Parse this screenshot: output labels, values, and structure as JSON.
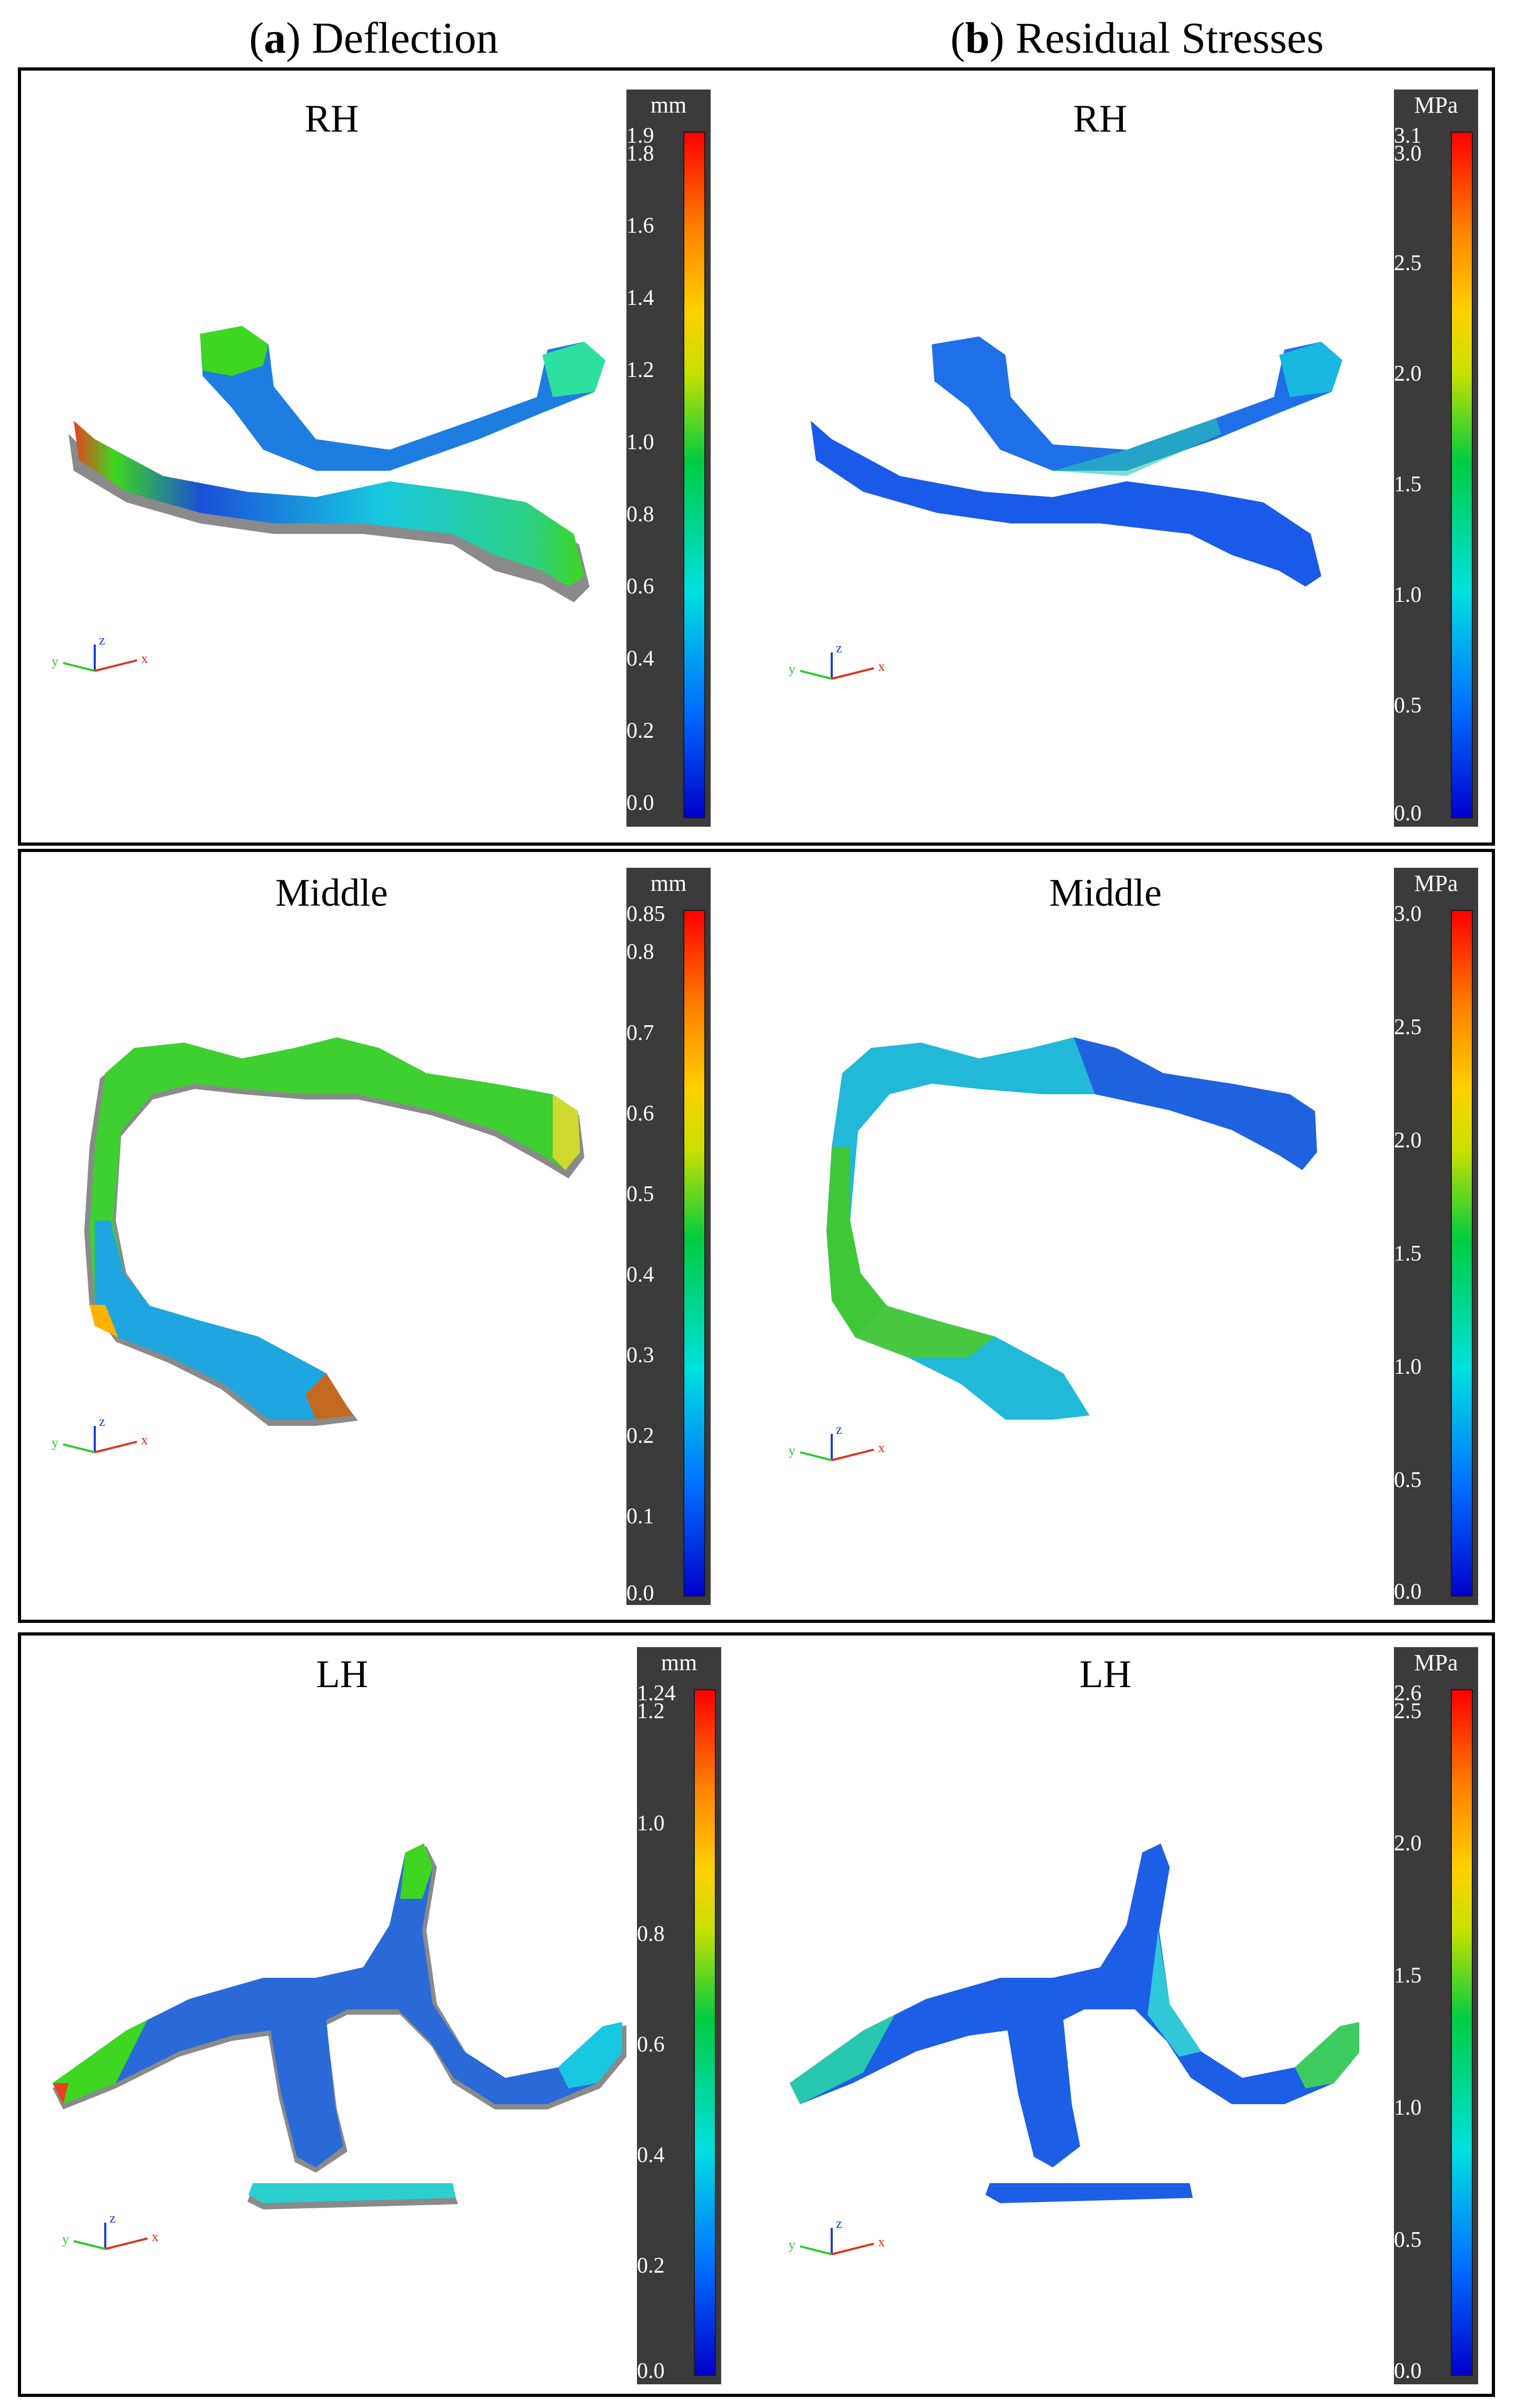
{
  "headers": {
    "a": {
      "letter": "a",
      "title": "Deflection"
    },
    "b": {
      "letter": "b",
      "title": "Residual Stresses"
    }
  },
  "rows": [
    {
      "deflection": {
        "title": "RH",
        "unit": "mm",
        "ticks": [
          "1.9",
          "1.8",
          "1.6",
          "1.4",
          "1.2",
          "1.0",
          "0.8",
          "0.6",
          "0.4",
          "0.2",
          "0.0"
        ]
      },
      "stress": {
        "title": "RH",
        "unit": "MPa",
        "ticks": [
          "3.1",
          "3.0",
          "2.5",
          "2.0",
          "1.5",
          "1.0",
          "0.5",
          "0.0"
        ]
      }
    },
    {
      "deflection": {
        "title": "Middle",
        "unit": "mm",
        "ticks": [
          "0.85",
          "0.8",
          "0.7",
          "0.6",
          "0.5",
          "0.4",
          "0.3",
          "0.2",
          "0.1",
          "0.0"
        ]
      },
      "stress": {
        "title": "Middle",
        "unit": "MPa",
        "ticks": [
          "3.0",
          "2.5",
          "2.0",
          "1.5",
          "1.0",
          "0.5",
          "0.0"
        ]
      }
    },
    {
      "deflection": {
        "title": "LH",
        "unit": "mm",
        "ticks": [
          "1.24",
          "1.2",
          "1.0",
          "0.8",
          "0.6",
          "0.4",
          "0.2",
          "0.0"
        ]
      },
      "stress": {
        "title": "LH",
        "unit": "MPa",
        "ticks": [
          "2.6",
          "2.5",
          "2.0",
          "1.5",
          "1.0",
          "0.5",
          "0.0"
        ]
      }
    }
  ],
  "axes_triad": {
    "x": "x",
    "y": "y",
    "z": "z"
  },
  "colors": {
    "colorbar_bg": "#3b3b3b",
    "mesh_gray": "#8a8a8a",
    "blue": "#1a4fd8",
    "cyan": "#18d6d6",
    "green": "#3ed620",
    "red": "#e83020"
  }
}
